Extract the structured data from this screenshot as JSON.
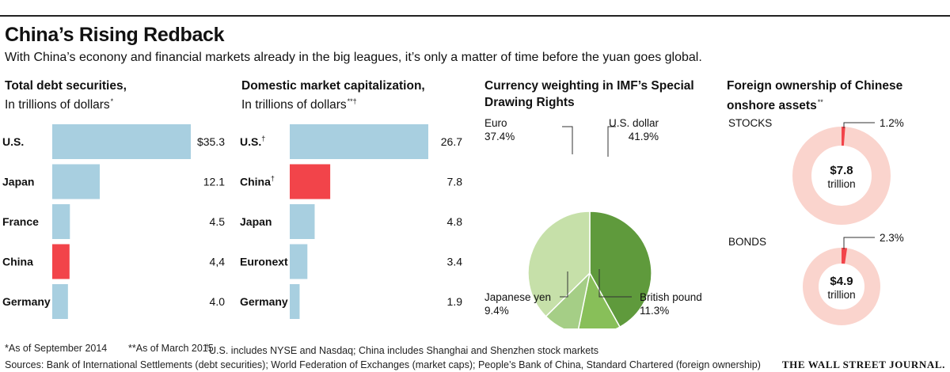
{
  "header": {
    "title": "China’s Rising Redback",
    "subtitle": "With China’s econony and financial markets already in the big leagues, it’s only a matter of time before the yuan goes global."
  },
  "colors": {
    "bar": "#a8cfe0",
    "highlight": "#f2444a",
    "pie_dark": "#5f9a3c",
    "pie_mid": "#88bf59",
    "pie_light": "#c6e0a9",
    "ring": "#fad4cd"
  },
  "chart_data": [
    {
      "type": "bar",
      "orientation": "horizontal",
      "title": "Total debt securities,",
      "subtitle": "In trillions of dollars",
      "subtitle_mark": "*",
      "categories": [
        "U.S.",
        "Japan",
        "France",
        "China",
        "Germany"
      ],
      "values": [
        35.3,
        12.1,
        4.5,
        4.4,
        4.0
      ],
      "value_labels": [
        "$35.3",
        "12.1",
        "4.5",
        "4,4",
        "4.0"
      ],
      "highlight": "China",
      "xlim": [
        0,
        35.3
      ]
    },
    {
      "type": "bar",
      "orientation": "horizontal",
      "title": "Domestic market capitalization,",
      "subtitle": "In trillions of dollars",
      "subtitle_mark": "**†",
      "categories": [
        "U.S.",
        "China",
        "Japan",
        "Euronext",
        "Germany"
      ],
      "category_marks": [
        "†",
        "†",
        "",
        "",
        ""
      ],
      "values": [
        26.7,
        7.8,
        4.8,
        3.4,
        1.9
      ],
      "value_labels": [
        "26.7",
        "7.8",
        "4.8",
        "3.4",
        "1.9"
      ],
      "highlight": "China",
      "xlim": [
        0,
        26.7
      ]
    },
    {
      "type": "pie",
      "title": "Currency weighting in IMF’s Special Drawing Rights",
      "title_lines": [
        "Currency weighting in IMF’s Special",
        "Drawing Rights"
      ],
      "slices": [
        {
          "name": "U.S. dollar",
          "label": "41.9%",
          "value": 41.9
        },
        {
          "name": "British pound",
          "label": "11.3%",
          "value": 11.3
        },
        {
          "name": "Japanese yen",
          "label": "9.4%",
          "value": 9.4
        },
        {
          "name": "Euro",
          "label": "37.4%",
          "value": 37.4
        }
      ]
    },
    {
      "type": "donut",
      "title": "Foreign ownership of Chinese onshore assets",
      "title_lines": [
        "Foreign ownership of Chinese",
        "onshore assets"
      ],
      "title_mark": "**",
      "rings": [
        {
          "name": "STOCKS",
          "total_value": "$7.8",
          "total_unit": "trillion",
          "share": 1.2,
          "share_label": "1.2%"
        },
        {
          "name": "BONDS",
          "total_value": "$4.9",
          "total_unit": "trillion",
          "share": 2.3,
          "share_label": "2.3%"
        }
      ]
    }
  ],
  "footer": {
    "note1": "*As of September 2014",
    "note2": "**As of March 2015",
    "note3_mark": "†",
    "note3": "U.S. includes NYSE and Nasdaq; China includes Shanghai and Shenzhen stock markets",
    "sources": "Sources: Bank of International Settlements (debt securities); World Federation of Exchanges (market caps); People’s Bank of China, Standard Chartered (foreign ownership)",
    "brand": "THE WALL STREET JOURNAL."
  }
}
